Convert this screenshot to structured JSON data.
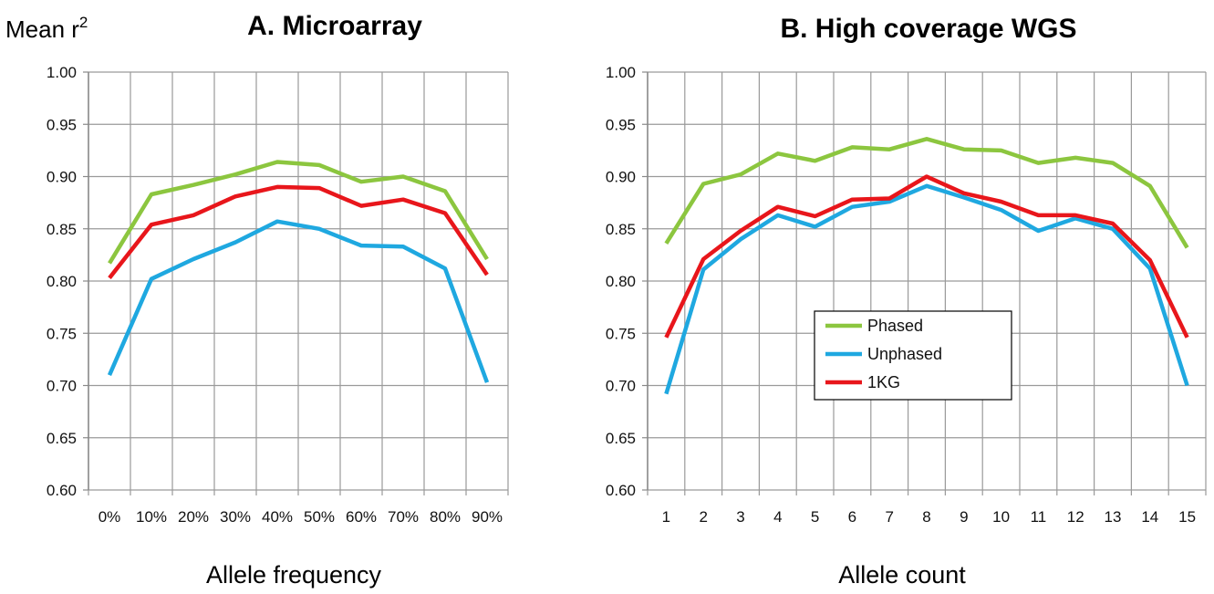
{
  "y_axis_label": "Mean r",
  "y_axis_label_sup": "2",
  "chart_data": [
    {
      "type": "line",
      "title": "A. Microarray",
      "xlabel": "Allele frequency",
      "ylabel": "Mean r²",
      "categories": [
        "0%",
        "10%",
        "20%",
        "30%",
        "40%",
        "50%",
        "60%",
        "70%",
        "80%",
        "90%"
      ],
      "ylim": [
        0.6,
        1.0
      ],
      "yticks": [
        "0.60",
        "0.65",
        "0.70",
        "0.75",
        "0.80",
        "0.85",
        "0.90",
        "0.95",
        "1.00"
      ],
      "grid": true,
      "legend": "none",
      "series": [
        {
          "name": "Phased",
          "color": "#8cc63f",
          "values": [
            0.817,
            0.883,
            0.892,
            0.902,
            0.914,
            0.911,
            0.895,
            0.9,
            0.886,
            0.821
          ]
        },
        {
          "name": "Unphased",
          "color": "#1fa8e0",
          "values": [
            0.71,
            0.802,
            0.821,
            0.837,
            0.857,
            0.85,
            0.834,
            0.833,
            0.812,
            0.703
          ]
        },
        {
          "name": "1KG",
          "color": "#e8161b",
          "values": [
            0.803,
            0.854,
            0.863,
            0.881,
            0.89,
            0.889,
            0.872,
            0.878,
            0.865,
            0.806
          ]
        }
      ]
    },
    {
      "type": "line",
      "title": "B. High coverage WGS",
      "xlabel": "Allele count",
      "ylabel": "Mean r²",
      "categories": [
        "1",
        "2",
        "3",
        "4",
        "5",
        "6",
        "7",
        "8",
        "9",
        "10",
        "11",
        "12",
        "13",
        "14",
        "15"
      ],
      "ylim": [
        0.6,
        1.0
      ],
      "yticks": [
        "0.60",
        "0.65",
        "0.70",
        "0.75",
        "0.80",
        "0.85",
        "0.90",
        "0.95",
        "1.00"
      ],
      "grid": true,
      "legend": "center",
      "series": [
        {
          "name": "Phased",
          "color": "#8cc63f",
          "values": [
            0.836,
            0.893,
            0.902,
            0.922,
            0.915,
            0.928,
            0.926,
            0.936,
            0.926,
            0.925,
            0.913,
            0.918,
            0.913,
            0.891,
            0.832
          ]
        },
        {
          "name": "Unphased",
          "color": "#1fa8e0",
          "values": [
            0.692,
            0.811,
            0.84,
            0.863,
            0.852,
            0.871,
            0.876,
            0.891,
            0.88,
            0.868,
            0.848,
            0.86,
            0.85,
            0.812,
            0.7
          ]
        },
        {
          "name": "1KG",
          "color": "#e8161b",
          "values": [
            0.746,
            0.821,
            0.848,
            0.871,
            0.862,
            0.878,
            0.879,
            0.9,
            0.884,
            0.876,
            0.863,
            0.863,
            0.855,
            0.82,
            0.746
          ]
        }
      ]
    }
  ]
}
